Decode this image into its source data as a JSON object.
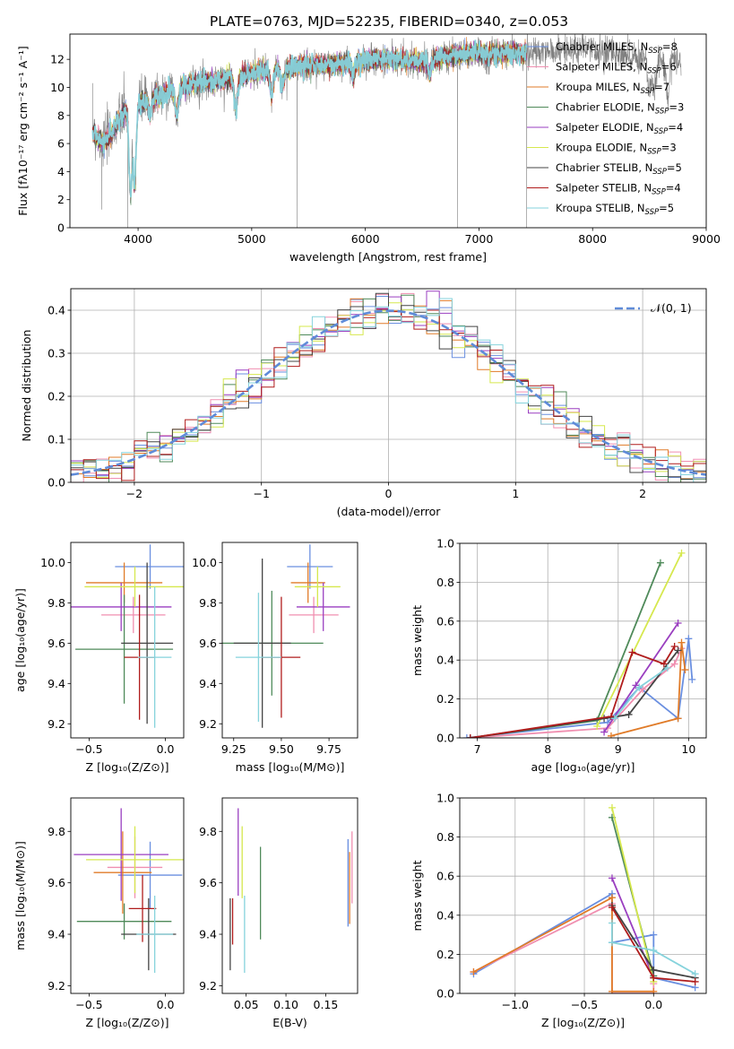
{
  "figure_title": "PLATE=0763, MJD=52235, FIBERID=0340, z=0.053",
  "colors": {
    "Chabrier MILES": "#6a8fe0",
    "Salpeter MILES": "#f08fb0",
    "Kroupa MILES": "#e07b28",
    "Chabrier ELODIE": "#4f8a5a",
    "Salpeter ELODIE": "#9a3fc0",
    "Kroupa ELODIE": "#d6e84e",
    "Chabrier STELIB": "#444444",
    "Salpeter STELIB": "#b01c1c",
    "Kroupa STELIB": "#86d3dc",
    "data": "#7f7f7f",
    "gauss": "#5f8bd8"
  },
  "chart_data": [
    {
      "id": "spectrum",
      "type": "line",
      "xlabel": "wavelength [Angstrom, rest frame]",
      "ylabel": "Flux [fλ10⁻¹⁷ erg cm⁻² s⁻¹ A⁻¹]",
      "xlim": [
        3400,
        9000
      ],
      "ylim": [
        0,
        13.8
      ],
      "xticks": [
        4000,
        5000,
        6000,
        7000,
        8000,
        9000
      ],
      "yticks": [
        0,
        2,
        4,
        6,
        8,
        10,
        12
      ],
      "grid": false,
      "legend": "top-right",
      "legend_entries": [
        "Chabrier MILES, N_SSP=8",
        "Salpeter MILES, N_SSP=6",
        "Kroupa MILES, N_SSP=7",
        "Chabrier ELODIE, N_SSP=3",
        "Salpeter ELODIE, N_SSP=4",
        "Kroupa ELODIE, N_SSP=3",
        "Chabrier STELIB, N_SSP=5",
        "Salpeter STELIB, N_SSP=4",
        "Kroupa STELIB, N_SSP=5"
      ],
      "legend_prefixes": [
        "Chabrier MILES, N",
        "Salpeter MILES, N",
        "Kroupa MILES, N",
        "Chabrier ELODIE, N",
        "Salpeter ELODIE, N",
        "Kroupa ELODIE, N",
        "Chabrier STELIB, N",
        "Salpeter STELIB, N",
        "Kroupa STELIB, N"
      ],
      "legend_sub": "SSP",
      "legend_values": [
        "=8",
        "=6",
        "=7",
        "=3",
        "=4",
        "=3",
        "=5",
        "=4",
        "=5"
      ],
      "continuum": [
        [
          3600,
          6.8
        ],
        [
          3700,
          6.0
        ],
        [
          3800,
          7.2
        ],
        [
          3900,
          8.5
        ],
        [
          4000,
          8.8
        ],
        [
          4100,
          9.2
        ],
        [
          4300,
          9.8
        ],
        [
          4500,
          10.3
        ],
        [
          4700,
          10.5
        ],
        [
          4900,
          10.8
        ],
        [
          5100,
          11.2
        ],
        [
          5300,
          11.3
        ],
        [
          5500,
          11.6
        ],
        [
          5700,
          11.6
        ],
        [
          5900,
          11.8
        ],
        [
          6100,
          12.0
        ],
        [
          6300,
          12.0
        ],
        [
          6500,
          11.8
        ],
        [
          6700,
          12.2
        ],
        [
          6900,
          12.4
        ],
        [
          7100,
          12.4
        ],
        [
          7300,
          12.5
        ],
        [
          7500,
          12.4
        ],
        [
          7700,
          12.6
        ],
        [
          7900,
          12.7
        ],
        [
          8100,
          12.5
        ],
        [
          8300,
          12.4
        ],
        [
          8500,
          11.9
        ],
        [
          8700,
          12.0
        ],
        [
          8780,
          11.8
        ]
      ],
      "absorption_lines": [
        [
          3934,
          2.4
        ],
        [
          3968,
          2.9
        ],
        [
          4102,
          8.0
        ],
        [
          4340,
          8.0
        ],
        [
          4861,
          8.5
        ],
        [
          5175,
          9.5
        ],
        [
          5270,
          10.1
        ],
        [
          5893,
          10.8
        ],
        [
          6563,
          11.0
        ],
        [
          8498,
          9.6
        ],
        [
          8542,
          9.3
        ],
        [
          8662,
          9.4
        ]
      ],
      "spikes": [
        [
          3680,
          1.3
        ],
        [
          3910,
          0.0
        ],
        [
          5400,
          0.0
        ],
        [
          6810,
          0.0
        ],
        [
          7420,
          0.0
        ]
      ],
      "data_x_range": [
        3600,
        8780
      ],
      "model_x_range": [
        3600,
        7420
      ]
    },
    {
      "id": "residual_hist",
      "type": "line",
      "xlabel": "(data-model)/error",
      "ylabel": "Normed distribution",
      "xlim": [
        -2.5,
        2.5
      ],
      "ylim": [
        0,
        0.45
      ],
      "xticks": [
        -2,
        -1,
        0,
        1,
        2
      ],
      "yticks": [
        0.0,
        0.1,
        0.2,
        0.3,
        0.4
      ],
      "grid": true,
      "legend": "top-right",
      "gauss_legend": "𝒩(0, 1)",
      "bin_width": 0.1
    },
    {
      "id": "age_vs_Z",
      "type": "scatter",
      "xlabel": "Z [log₁₀(Z/Z⊙)]",
      "ylabel": "age  [log₁₀(age/yr)]",
      "xlim": [
        -0.62,
        0.12
      ],
      "ylim": [
        9.13,
        10.1
      ],
      "xticks": [
        -0.5,
        0.0
      ],
      "yticks": [
        9.2,
        9.4,
        9.6,
        9.8,
        10.0
      ],
      "grid": false,
      "points": [
        {
          "series": "Chabrier MILES",
          "x": -0.1,
          "xerr": 0.23,
          "y": 9.98,
          "yerr": 0.11
        },
        {
          "series": "Salpeter MILES",
          "x": -0.21,
          "xerr": 0.21,
          "y": 9.74,
          "yerr": 0.09
        },
        {
          "series": "Kroupa MILES",
          "x": -0.27,
          "xerr": 0.25,
          "y": 9.9,
          "yerr": 0.1
        },
        {
          "series": "Chabrier ELODIE",
          "x": -0.27,
          "xerr": 0.32,
          "y": 9.57,
          "yerr": 0.27
        },
        {
          "series": "Salpeter ELODIE",
          "x": -0.29,
          "xerr": 0.33,
          "y": 9.78,
          "yerr": 0.12
        },
        {
          "series": "Kroupa ELODIE",
          "x": -0.2,
          "xerr": 0.33,
          "y": 9.88,
          "yerr": 0.1
        },
        {
          "series": "Chabrier STELIB",
          "x": -0.12,
          "xerr": 0.17,
          "y": 9.6,
          "yerr": 0.4
        },
        {
          "series": "Salpeter STELIB",
          "x": -0.17,
          "xerr": 0.1,
          "y": 9.53,
          "yerr": 0.31
        },
        {
          "series": "Kroupa STELIB",
          "x": -0.07,
          "xerr": 0.11,
          "y": 9.53,
          "yerr": 0.35
        }
      ]
    },
    {
      "id": "age_vs_mass",
      "type": "scatter",
      "xlabel": "mass [log₁₀(M/M⊙)]",
      "ylabel": "",
      "xlim": [
        9.19,
        9.9
      ],
      "ylim": [
        9.13,
        10.1
      ],
      "xticks": [
        9.25,
        9.5,
        9.75
      ],
      "yticks": [
        9.2,
        9.4,
        9.6,
        9.8,
        10.0
      ],
      "grid": false,
      "points": [
        {
          "series": "Chabrier MILES",
          "x": 9.65,
          "xerr": 0.12,
          "y": 9.98,
          "yerr": 0.11
        },
        {
          "series": "Salpeter MILES",
          "x": 9.67,
          "xerr": 0.13,
          "y": 9.74,
          "yerr": 0.09
        },
        {
          "series": "Kroupa MILES",
          "x": 9.64,
          "xerr": 0.09,
          "y": 9.9,
          "yerr": 0.1
        },
        {
          "series": "Chabrier ELODIE",
          "x": 9.45,
          "xerr": 0.27,
          "y": 9.6,
          "yerr": 0.26
        },
        {
          "series": "Salpeter ELODIE",
          "x": 9.72,
          "xerr": 0.14,
          "y": 9.78,
          "yerr": 0.12
        },
        {
          "series": "Kroupa ELODIE",
          "x": 9.69,
          "xerr": 0.12,
          "y": 9.88,
          "yerr": 0.1
        },
        {
          "series": "Chabrier STELIB",
          "x": 9.4,
          "xerr": 0.15,
          "y": 9.6,
          "yerr": 0.42
        },
        {
          "series": "Salpeter STELIB",
          "x": 9.5,
          "xerr": 0.1,
          "y": 9.53,
          "yerr": 0.3
        },
        {
          "series": "Kroupa STELIB",
          "x": 9.38,
          "xerr": 0.12,
          "y": 9.53,
          "yerr": 0.32
        }
      ]
    },
    {
      "id": "massweight_vs_age",
      "type": "line",
      "xlabel": "age  [log₁₀(age/yr)]",
      "ylabel": "mass weight",
      "xlim": [
        6.75,
        10.25
      ],
      "ylim": [
        0,
        1.0
      ],
      "xticks": [
        7,
        8,
        9,
        10
      ],
      "yticks": [
        0.0,
        0.2,
        0.4,
        0.6,
        0.8,
        1.0
      ],
      "grid": true,
      "series": [
        {
          "name": "Chabrier MILES",
          "points": [
            [
              6.85,
              0.0
            ],
            [
              8.85,
              0.08
            ],
            [
              9.3,
              0.26
            ],
            [
              9.85,
              0.1
            ],
            [
              10.0,
              0.51
            ],
            [
              10.05,
              0.3
            ]
          ]
        },
        {
          "name": "Salpeter MILES",
          "points": [
            [
              6.9,
              0.0
            ],
            [
              8.85,
              0.05
            ],
            [
              9.35,
              0.25
            ],
            [
              9.8,
              0.38
            ],
            [
              9.9,
              0.46
            ]
          ]
        },
        {
          "name": "Kroupa MILES",
          "points": [
            [
              8.9,
              0.01
            ],
            [
              9.85,
              0.1
            ],
            [
              9.9,
              0.49
            ],
            [
              9.95,
              0.35
            ]
          ]
        },
        {
          "name": "Chabrier ELODIE",
          "points": [
            [
              6.9,
              0.0
            ],
            [
              8.7,
              0.09
            ],
            [
              9.6,
              0.9
            ]
          ]
        },
        {
          "name": "Salpeter ELODIE",
          "points": [
            [
              8.8,
              0.03
            ],
            [
              9.25,
              0.27
            ],
            [
              9.85,
              0.59
            ]
          ]
        },
        {
          "name": "Kroupa ELODIE",
          "points": [
            [
              8.7,
              0.06
            ],
            [
              9.9,
              0.95
            ]
          ]
        },
        {
          "name": "Chabrier STELIB",
          "points": [
            [
              6.9,
              0.0
            ],
            [
              8.8,
              0.1
            ],
            [
              9.15,
              0.12
            ],
            [
              9.85,
              0.45
            ]
          ]
        },
        {
          "name": "Salpeter STELIB",
          "points": [
            [
              6.9,
              0.0
            ],
            [
              8.9,
              0.11
            ],
            [
              9.2,
              0.44
            ],
            [
              9.65,
              0.38
            ],
            [
              9.8,
              0.47
            ]
          ]
        },
        {
          "name": "Kroupa STELIB",
          "points": [
            [
              8.95,
              0.1
            ],
            [
              9.3,
              0.26
            ],
            [
              9.7,
              0.36
            ]
          ]
        }
      ]
    },
    {
      "id": "mass_vs_Z",
      "type": "scatter",
      "xlabel": "Z [log₁₀(Z/Z⊙)]",
      "ylabel": "mass [log₁₀(M/M⊙)]",
      "xlim": [
        -0.62,
        0.12
      ],
      "ylim": [
        9.17,
        9.93
      ],
      "xticks": [
        -0.5,
        0.0
      ],
      "yticks": [
        9.2,
        9.4,
        9.6,
        9.8
      ],
      "grid": false,
      "points": [
        {
          "series": "Chabrier MILES",
          "x": -0.1,
          "xerr": 0.21,
          "y": 9.63,
          "yerr": 0.13
        },
        {
          "series": "Salpeter MILES",
          "x": -0.2,
          "xerr": 0.18,
          "y": 9.66,
          "yerr": 0.12
        },
        {
          "series": "Kroupa MILES",
          "x": -0.28,
          "xerr": 0.19,
          "y": 9.64,
          "yerr": 0.16
        },
        {
          "series": "Chabrier ELODIE",
          "x": -0.27,
          "xerr": 0.31,
          "y": 9.45,
          "yerr": 0.07
        },
        {
          "series": "Salpeter ELODIE",
          "x": -0.29,
          "xerr": 0.31,
          "y": 9.71,
          "yerr": 0.18
        },
        {
          "series": "Kroupa ELODIE",
          "x": -0.2,
          "xerr": 0.32,
          "y": 9.69,
          "yerr": 0.13
        },
        {
          "series": "Chabrier STELIB",
          "x": -0.11,
          "xerr": 0.18,
          "y": 9.4,
          "yerr": 0.14
        },
        {
          "series": "Salpeter STELIB",
          "x": -0.15,
          "xerr": 0.09,
          "y": 9.5,
          "yerr": 0.13
        },
        {
          "series": "Kroupa STELIB",
          "x": -0.07,
          "xerr": 0.12,
          "y": 9.4,
          "yerr": 0.15
        }
      ]
    },
    {
      "id": "mass_vs_ebv",
      "type": "scatter",
      "xlabel": "E(B-V)",
      "ylabel": "",
      "xlim": [
        0.02,
        0.19
      ],
      "ylim": [
        9.17,
        9.93
      ],
      "xticks": [
        0.05,
        0.1,
        0.15
      ],
      "yticks": [
        9.2,
        9.4,
        9.6,
        9.8
      ],
      "grid": false,
      "points": [
        {
          "series": "Chabrier MILES",
          "x": 0.178,
          "y": 9.6,
          "yerr": 0.17
        },
        {
          "series": "Salpeter MILES",
          "x": 0.183,
          "y": 9.66,
          "yerr": 0.14
        },
        {
          "series": "Kroupa MILES",
          "x": 0.18,
          "y": 9.58,
          "yerr": 0.14
        },
        {
          "series": "Chabrier ELODIE",
          "x": 0.068,
          "y": 9.56,
          "yerr": 0.18
        },
        {
          "series": "Salpeter ELODIE",
          "x": 0.04,
          "y": 9.72,
          "yerr": 0.17
        },
        {
          "series": "Kroupa ELODIE",
          "x": 0.045,
          "y": 9.68,
          "yerr": 0.14
        },
        {
          "series": "Chabrier STELIB",
          "x": 0.03,
          "y": 9.4,
          "yerr": 0.14
        },
        {
          "series": "Salpeter STELIB",
          "x": 0.033,
          "y": 9.45,
          "yerr": 0.09
        },
        {
          "series": "Kroupa STELIB",
          "x": 0.048,
          "y": 9.4,
          "yerr": 0.15
        }
      ]
    },
    {
      "id": "massweight_vs_Z",
      "type": "line",
      "xlabel": "Z [log₁₀(Z/Z⊙)]",
      "ylabel": "mass weight",
      "xlim": [
        -1.4,
        0.38
      ],
      "ylim": [
        0,
        1.0
      ],
      "xticks": [
        -1.0,
        -0.5,
        0.0
      ],
      "yticks": [
        0.0,
        0.2,
        0.4,
        0.6,
        0.8,
        1.0
      ],
      "grid": true,
      "series": [
        {
          "name": "Chabrier MILES",
          "points": [
            [
              -1.3,
              0.1
            ],
            [
              -0.3,
              0.51
            ],
            [
              -0.3,
              0.26
            ],
            [
              0.0,
              0.3
            ],
            [
              0.0,
              0.08
            ],
            [
              0.3,
              0.03
            ]
          ]
        },
        {
          "name": "Salpeter MILES",
          "points": [
            [
              -1.3,
              0.11
            ],
            [
              -0.3,
              0.46
            ],
            [
              -0.3,
              0.0
            ],
            [
              0.0,
              0.0
            ],
            [
              0.0,
              0.05
            ]
          ]
        },
        {
          "name": "Kroupa MILES",
          "points": [
            [
              -1.3,
              0.11
            ],
            [
              -0.3,
              0.49
            ],
            [
              -0.3,
              0.01
            ],
            [
              0.0,
              0.01
            ]
          ]
        },
        {
          "name": "Chabrier ELODIE",
          "points": [
            [
              -0.3,
              0.9
            ],
            [
              0.0,
              0.09
            ]
          ]
        },
        {
          "name": "Salpeter ELODIE",
          "points": [
            [
              -0.3,
              0.59
            ],
            [
              0.0,
              0.08
            ]
          ]
        },
        {
          "name": "Kroupa ELODIE",
          "points": [
            [
              -0.3,
              0.95
            ],
            [
              0.0,
              0.06
            ]
          ]
        },
        {
          "name": "Chabrier STELIB",
          "points": [
            [
              -0.3,
              0.45
            ],
            [
              0.0,
              0.12
            ],
            [
              0.3,
              0.08
            ]
          ]
        },
        {
          "name": "Salpeter STELIB",
          "points": [
            [
              -0.3,
              0.44
            ],
            [
              0.0,
              0.08
            ],
            [
              0.3,
              0.06
            ]
          ]
        },
        {
          "name": "Kroupa STELIB",
          "points": [
            [
              -0.3,
              0.36
            ],
            [
              -0.3,
              0.26
            ],
            [
              0.0,
              0.22
            ],
            [
              0.3,
              0.1
            ]
          ]
        }
      ]
    }
  ]
}
